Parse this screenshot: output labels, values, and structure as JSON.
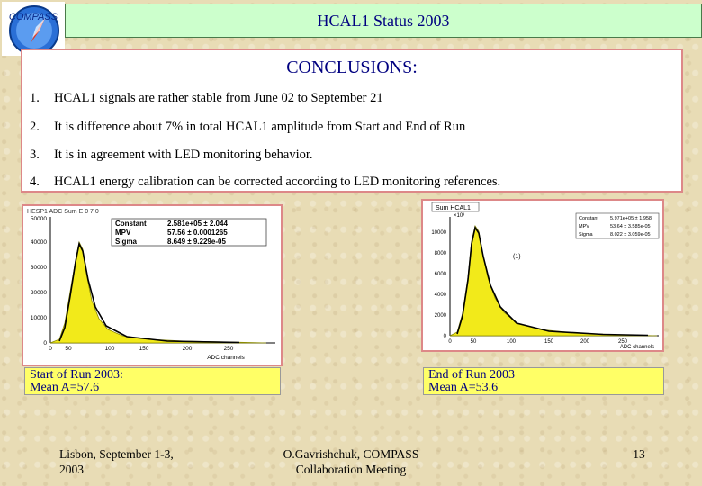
{
  "header": {
    "title": "HCAL1 Status 2003"
  },
  "logo": {
    "text": "COMPASS"
  },
  "conclusions": {
    "title": "CONCLUSIONS:",
    "items": [
      {
        "num": "1.",
        "text": "HCAL1 signals  are rather stable from June 02 to September 21"
      },
      {
        "num": "2.",
        "text": "It is  difference about  7% in total HCAL1 amplitude from  Start and End of Run"
      },
      {
        "num": "3.",
        "text": "It is in agreement with LED monitoring behavior."
      },
      {
        "num": "4.",
        "text": "HCAL1 energy calibration can be corrected according to LED monitoring references."
      }
    ]
  },
  "plot_left": {
    "header": "HESP1    ADC Sum  E 0 7 0",
    "stats": [
      {
        "label": "Constant",
        "value": "2.581e+05 ± 2.044"
      },
      {
        "label": "MPV",
        "value": "57.56 ± 0.0001265"
      },
      {
        "label": "Sigma",
        "value": "8.649 ± 9.229e-05"
      }
    ],
    "xlabel": "ADC channels",
    "xticks": [
      "0",
      "50",
      "100",
      "150",
      "200",
      "250"
    ],
    "yticks": [
      "0",
      "10000",
      "20000",
      "30000",
      "40000",
      "50000"
    ]
  },
  "plot_right": {
    "header": "Sum HCAL1",
    "scale": "×10³",
    "annotation": "(1)",
    "stats": [
      {
        "label": "Constant",
        "value": "5.971e+05 ± 1.958"
      },
      {
        "label": "MPV",
        "value": "53.64 ± 3.585e-05"
      },
      {
        "label": "Sigma",
        "value": "8.022 ± 3.059e-05"
      }
    ],
    "xlabel": "ADC channels",
    "xticks": [
      "0",
      "50",
      "100",
      "150",
      "200",
      "250"
    ],
    "yticks": [
      "0",
      "2000",
      "4000",
      "6000",
      "8000",
      "10000"
    ]
  },
  "captions": {
    "left": {
      "line1": "Start of Run 2003:",
      "line2": "Mean A=57.6"
    },
    "right": {
      "line1": "End of Run 2003",
      "line2": "Mean A=53.6"
    }
  },
  "footer": {
    "left_line1": "Lisbon, September 1-3,",
    "left_line2": "2003",
    "center_line1": "O.Gavrishchuk,    COMPASS",
    "center_line2": "Collaboration Meeting",
    "page": "13"
  }
}
